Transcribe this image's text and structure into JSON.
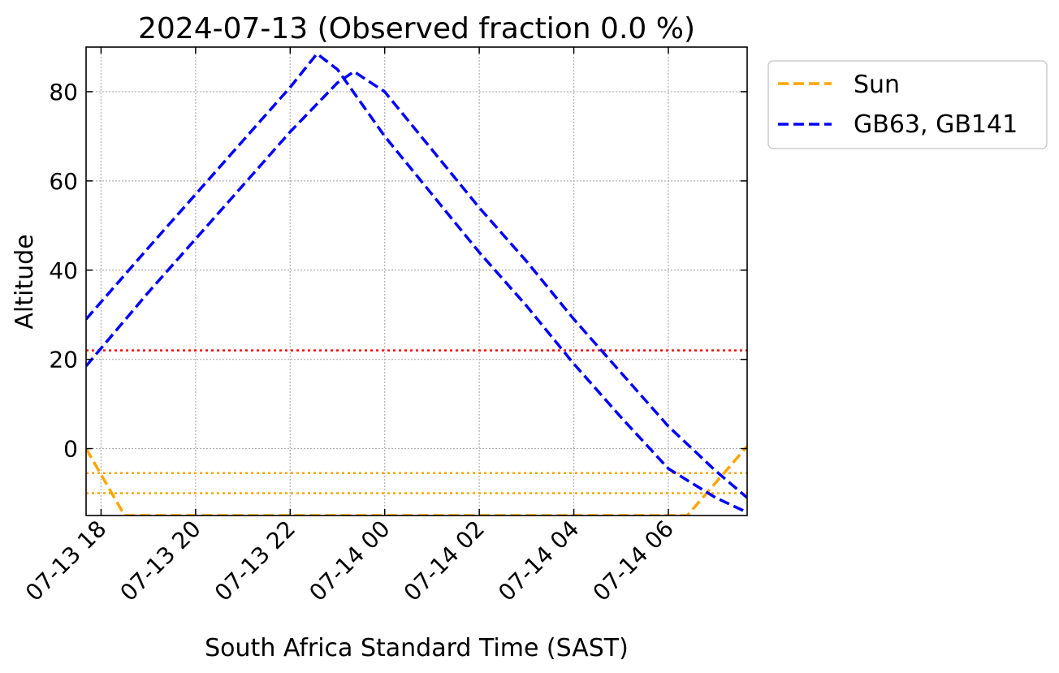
{
  "chart_data": {
    "type": "line",
    "title": "2024-07-13 (Observed fraction 0.0 %)",
    "xlabel": "South Africa Standard Time (SAST)",
    "ylabel": "Altitude",
    "xlim": [
      "2024-07-13 17:41",
      "2024-07-14 07:40"
    ],
    "ylim": [
      -15,
      90
    ],
    "grid": true,
    "legend_position": "outside upper right",
    "x_ticks": [
      "07-13 18",
      "07-13 20",
      "07-13 22",
      "07-14 00",
      "07-14 02",
      "07-14 04",
      "07-14 06"
    ],
    "y_ticks": [
      0,
      20,
      40,
      60,
      80
    ],
    "legend": [
      {
        "label": "Sun",
        "color": "#ffa500",
        "style": "dashed"
      },
      {
        "label": "GB63, GB141",
        "color": "#0000ff",
        "style": "dashed"
      }
    ],
    "reference_lines": [
      {
        "y": 22,
        "color": "#ff0000",
        "style": "dotted"
      },
      {
        "y": -5.5,
        "color": "#ffa500",
        "style": "dotted"
      },
      {
        "y": -10,
        "color": "#ffa500",
        "style": "dotted"
      }
    ],
    "series": [
      {
        "name": "Sun",
        "color": "#ffa500",
        "x": [
          "2024-07-13 17:41",
          "2024-07-13 18:30",
          "2024-07-14 06:24",
          "2024-07-14 07:40"
        ],
        "y": [
          0,
          -15,
          -15,
          0.5
        ]
      },
      {
        "name": "GB63, GB141",
        "color": "#0000ff",
        "x": [
          "2024-07-13 17:41",
          "2024-07-13 19:00",
          "2024-07-13 20:00",
          "2024-07-13 21:00",
          "2024-07-13 22:00",
          "2024-07-13 22:34",
          "2024-07-13 23:00",
          "2024-07-14 00:00",
          "2024-07-14 01:00",
          "2024-07-14 02:00",
          "2024-07-14 03:00",
          "2024-07-14 04:00",
          "2024-07-14 05:00",
          "2024-07-14 06:00",
          "2024-07-14 07:00",
          "2024-07-14 07:40"
        ],
        "y": [
          29,
          45,
          57,
          69,
          81,
          88.5,
          85,
          70,
          57,
          44,
          32,
          19,
          7,
          -4.5,
          -11,
          -14.3
        ]
      },
      {
        "name": "GB63, GB141",
        "color": "#0000ff",
        "x": [
          "2024-07-13 17:41",
          "2024-07-13 19:00",
          "2024-07-13 20:00",
          "2024-07-13 21:00",
          "2024-07-13 22:00",
          "2024-07-13 23:00",
          "2024-07-13 23:21",
          "2024-07-14 00:00",
          "2024-07-14 01:00",
          "2024-07-14 02:00",
          "2024-07-14 03:00",
          "2024-07-14 04:00",
          "2024-07-14 05:00",
          "2024-07-14 06:00",
          "2024-07-14 07:00",
          "2024-07-14 07:40"
        ],
        "y": [
          18.5,
          35,
          47,
          59,
          71,
          82,
          84.5,
          80,
          67,
          54,
          42,
          29,
          17,
          5,
          -5,
          -11
        ]
      }
    ]
  }
}
